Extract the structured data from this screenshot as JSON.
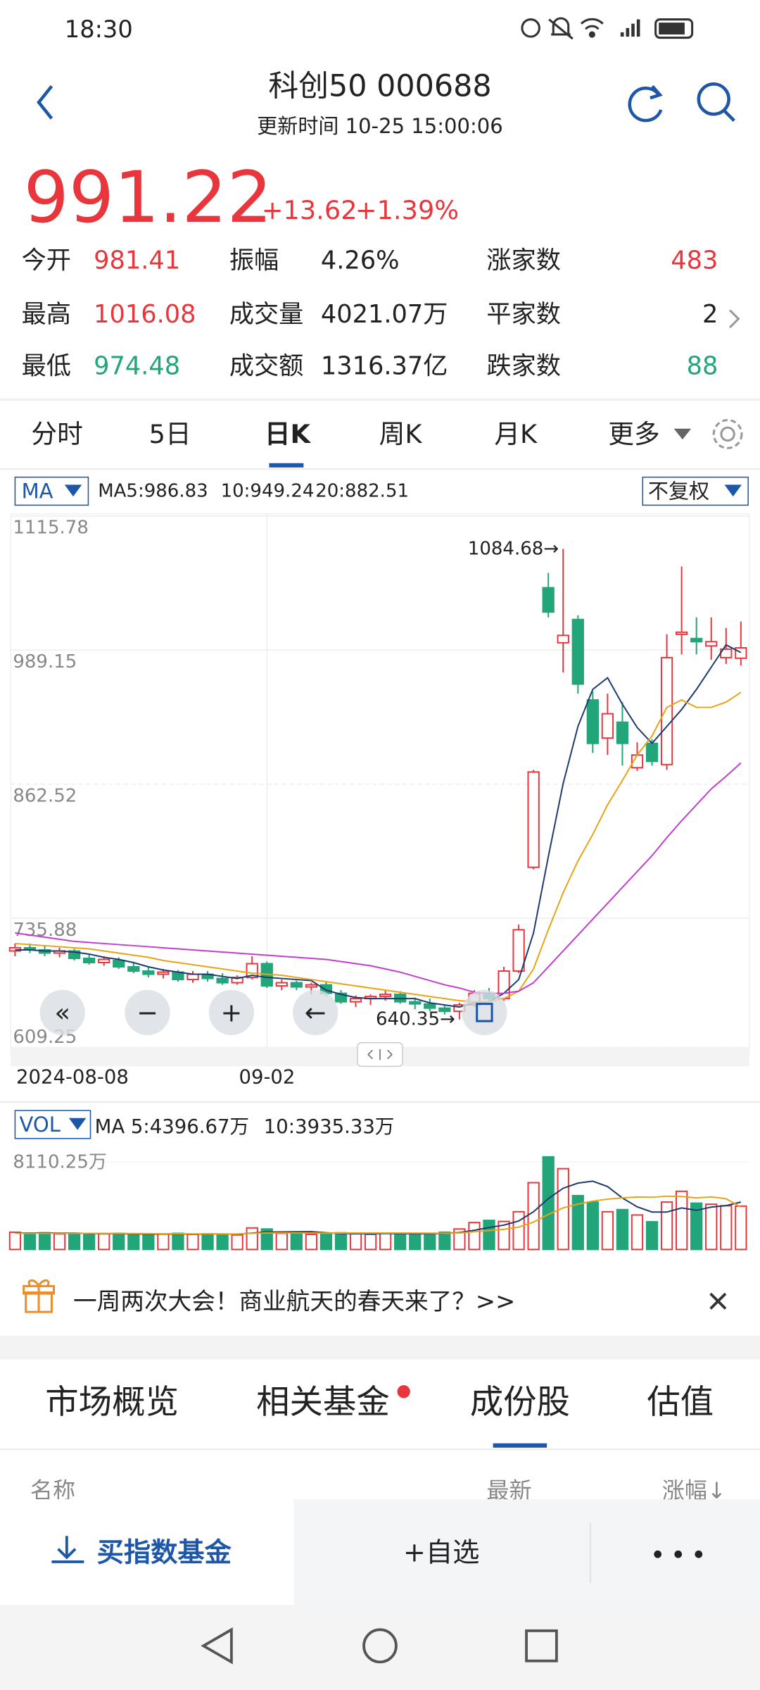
{
  "status_bar": {
    "time": "18:30"
  },
  "header": {
    "title": "科创50 000688",
    "subtitle": "更新时间 10-25 15:00:06"
  },
  "quote": {
    "price": "991.22",
    "change": "+13.62",
    "change_pct": "+1.39%",
    "stats": [
      {
        "label": "今开",
        "value": "981.41"
      },
      {
        "label": "振幅",
        "value": "4.26%"
      },
      {
        "label": "涨家数",
        "value": "483"
      },
      {
        "label": "最高",
        "value": "1016.08"
      },
      {
        "label": "成交量",
        "value": "4021.07万"
      },
      {
        "label": "平家数",
        "value": "2"
      },
      {
        "label": "最低",
        "value": "974.48"
      },
      {
        "label": "成交额",
        "value": "1316.37亿"
      },
      {
        "label": "跌家数",
        "value": "88"
      }
    ]
  },
  "period_tabs": [
    "分时",
    "5日",
    "日K",
    "周K",
    "月K",
    "更多"
  ],
  "chart_data": {
    "type": "candlestick",
    "indicator": "MA",
    "indicator_labels": [
      "MA5:986.83",
      "10:949.24",
      "20:882.51"
    ],
    "adjust": "不复权",
    "categories": [
      "2024-08-08",
      null,
      null,
      null,
      null,
      null,
      null,
      null,
      null,
      null,
      null,
      null,
      null,
      null,
      null,
      null,
      null,
      "09-02",
      null,
      null,
      null,
      null,
      null,
      null,
      null,
      null,
      null,
      null,
      null,
      null,
      null,
      null,
      null,
      null,
      null,
      null,
      null,
      null,
      null,
      null,
      null,
      null,
      null,
      null,
      null,
      null,
      null,
      null,
      null,
      null
    ],
    "open": [
      705,
      708,
      706,
      703,
      705,
      698,
      694,
      696,
      690,
      686,
      683,
      685,
      678,
      683,
      679,
      675,
      680,
      693,
      672,
      675,
      671,
      673,
      665,
      657,
      660,
      662,
      664,
      657,
      655,
      651,
      648,
      654,
      665,
      660,
      686,
      784,
      1048,
      996,
      1018,
      942,
      906,
      921,
      878,
      901,
      881,
      1004,
      1000,
      993,
      982,
      981.41
    ],
    "high": [
      712,
      712,
      710,
      708,
      707,
      702,
      700,
      699,
      694,
      690,
      688,
      687,
      686,
      686,
      684,
      682,
      700,
      695,
      678,
      677,
      675,
      676,
      668,
      663,
      664,
      668,
      667,
      661,
      660,
      654,
      656,
      668,
      670,
      690,
      730,
      876,
      1062,
      1084.68,
      1022,
      950,
      948,
      940,
      902,
      905,
      1004,
      1068,
      1020,
      1020,
      1010,
      1016.08
    ],
    "low": [
      700,
      703,
      700,
      699,
      696,
      692,
      691,
      688,
      684,
      680,
      679,
      676,
      675,
      676,
      673,
      673,
      678,
      670,
      668,
      668,
      664,
      662,
      655,
      652,
      654,
      658,
      655,
      650,
      648,
      645,
      640.35,
      652,
      656,
      658,
      684,
      782,
      1020,
      968,
      948,
      892,
      890,
      880,
      875,
      880,
      876,
      985,
      985,
      980,
      976,
      974.48
    ],
    "close": [
      708,
      706,
      703,
      705,
      698,
      694,
      697,
      690,
      686,
      683,
      685,
      678,
      683,
      679,
      675,
      680,
      693,
      672,
      675,
      671,
      673,
      665,
      657,
      660,
      662,
      664,
      657,
      655,
      651,
      648,
      654,
      665,
      660,
      686,
      725,
      874,
      1025,
      1003,
      957,
      901,
      929,
      901,
      890,
      884,
      982,
      1006,
      997,
      997,
      990,
      991.22
    ],
    "up_color": "#e8363c",
    "down_color": "#23a57a",
    "series": [
      {
        "color": "#1d3b6e",
        "values": [
          706,
          706,
          705,
          705,
          704,
          702,
          699,
          697,
          694,
          690,
          687,
          685,
          683,
          683,
          681,
          679,
          682,
          680,
          679,
          678,
          677,
          668,
          664,
          661,
          660,
          660,
          660,
          660,
          656,
          654,
          652,
          656,
          657,
          665,
          678,
          722,
          794,
          863,
          917,
          952,
          963,
          938,
          916,
          901,
          917,
          933,
          952,
          973,
          994,
          986.83
        ]
      },
      {
        "color": "#e8a317",
        "values": [
          712,
          711,
          710,
          709,
          708,
          707,
          705,
          703,
          701,
          699,
          696,
          694,
          692,
          690,
          688,
          686,
          684,
          683,
          682,
          680,
          678,
          676,
          674,
          672,
          670,
          668,
          666,
          664,
          662,
          660,
          658,
          657,
          657,
          660,
          667,
          688,
          725,
          760,
          790,
          815,
          843,
          866,
          890,
          908,
          935,
          942,
          935,
          935,
          940,
          949.24
        ]
      },
      {
        "color": "#c23ecf",
        "values": [
          722,
          720,
          718,
          716,
          714,
          713,
          712,
          711,
          710,
          709,
          708,
          707,
          706,
          705,
          704,
          703,
          702,
          701,
          700,
          699,
          698,
          697,
          695,
          693,
          691,
          688,
          685,
          681,
          677,
          673,
          670,
          666,
          665,
          665,
          667,
          675,
          690,
          705,
          720,
          735,
          750,
          765,
          780,
          795,
          812,
          828,
          843,
          858,
          870,
          882.51
        ]
      }
    ],
    "ylim": [
      609.25,
      1115.78
    ],
    "yticks": [
      609.25,
      735.88,
      862.52,
      989.15,
      1115.78
    ],
    "annotations": [
      "1084.68→",
      "640.35→"
    ]
  },
  "volume_chart": {
    "type": "bar",
    "label": "VOL",
    "indicator_labels": [
      "MA 5:4396.67万",
      "10:3935.33万"
    ],
    "values": [
      1600,
      1500,
      1550,
      1450,
      1500,
      1400,
      1450,
      1500,
      1400,
      1350,
      1450,
      1500,
      1400,
      1450,
      1400,
      1350,
      2000,
      1900,
      1500,
      1450,
      1400,
      1500,
      1550,
      1450,
      1400,
      1500,
      1450,
      1400,
      1500,
      1600,
      1900,
      2500,
      2700,
      2600,
      3500,
      6200,
      8600,
      7500,
      5000,
      4400,
      3500,
      3700,
      3200,
      2570,
      4400,
      5400,
      4300,
      4200,
      4062,
      4021.07
    ],
    "series": [
      {
        "color": "#1d3b6e",
        "values": [
          1520,
          1530,
          1540,
          1520,
          1520,
          1480,
          1470,
          1460,
          1450,
          1420,
          1430,
          1440,
          1420,
          1430,
          1440,
          1420,
          1520,
          1620,
          1630,
          1640,
          1650,
          1550,
          1480,
          1470,
          1460,
          1480,
          1470,
          1460,
          1460,
          1490,
          1570,
          1780,
          2040,
          2260,
          2640,
          3500,
          4720,
          5680,
          6160,
          6340,
          5840,
          4780,
          3960,
          3474,
          3474,
          3854,
          3634,
          3934,
          4072,
          4396.67
        ]
      },
      {
        "color": "#e8a317",
        "values": [
          1500,
          1500,
          1500,
          1500,
          1500,
          1500,
          1490,
          1490,
          1480,
          1470,
          1460,
          1460,
          1450,
          1450,
          1440,
          1440,
          1500,
          1540,
          1540,
          1540,
          1530,
          1520,
          1530,
          1530,
          1530,
          1530,
          1530,
          1520,
          1510,
          1500,
          1530,
          1640,
          1760,
          1870,
          2070,
          2540,
          3250,
          3860,
          4210,
          4490,
          4670,
          4790,
          4870,
          4850,
          4940,
          4920,
          4780,
          4880,
          4710,
          3935.33
        ]
      }
    ],
    "ylim": [
      0,
      9000
    ],
    "yticks": [
      {
        "value": 8110.25,
        "label": "8110.25万"
      }
    ]
  },
  "banner": {
    "text": "一周两次大会！商业航天的春天来了？>>"
  },
  "section_tabs": [
    "市场概览",
    "相关基金",
    "成份股",
    "估值"
  ],
  "list_header": [
    "名称",
    "最新",
    "涨幅↓"
  ],
  "action_bar": {
    "buy": "买指数基金",
    "watch": "+自选"
  }
}
